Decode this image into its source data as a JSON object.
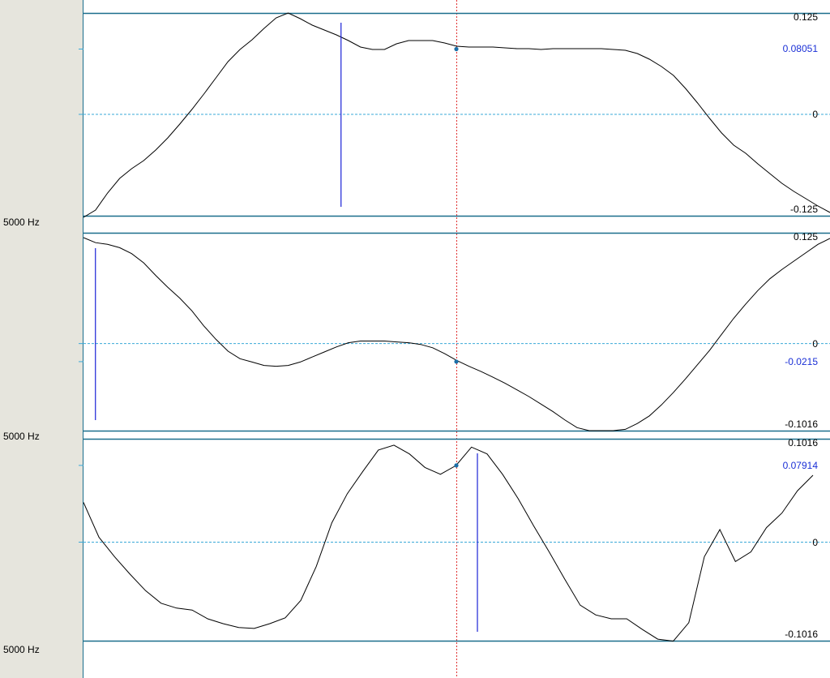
{
  "panels": [
    {
      "freq_label": "5000 Hz",
      "ylim": [
        -0.125,
        0.125
      ],
      "ticks": {
        "top": "0.125",
        "zero": "0",
        "bottom": "-0.125"
      },
      "cursor_value": 0.08051,
      "cursor_label": "0.08051",
      "marker_time": 0.345,
      "samples": [
        -0.14,
        -0.118,
        -0.097,
        -0.079,
        -0.067,
        -0.057,
        -0.044,
        -0.029,
        -0.012,
        0.006,
        0.025,
        0.045,
        0.065,
        0.08,
        0.092,
        0.106,
        0.119,
        0.125,
        0.118,
        0.11,
        0.104,
        0.098,
        0.091,
        0.083,
        0.08,
        0.08,
        0.087,
        0.091,
        0.091,
        0.091,
        0.088,
        0.084,
        0.083,
        0.083,
        0.083,
        0.082,
        0.081,
        0.081,
        0.08,
        0.081,
        0.081,
        0.081,
        0.081,
        0.081,
        0.08,
        0.079,
        0.075,
        0.068,
        0.059,
        0.048,
        0.032,
        0.014,
        -0.005,
        -0.023,
        -0.038,
        -0.048,
        -0.061,
        -0.073,
        -0.085,
        -0.095,
        -0.104,
        -0.113,
        -0.121
      ]
    },
    {
      "freq_label": "5000 Hz",
      "ylim": [
        -0.1016,
        0.125
      ],
      "ticks": {
        "top": "0.125",
        "zero": "0",
        "bottom": "-0.1016"
      },
      "cursor_value": -0.0215,
      "cursor_label": "-0.0215",
      "marker_time": 0.016,
      "samples": [
        0.126,
        0.12,
        0.118,
        0.114,
        0.107,
        0.096,
        0.081,
        0.067,
        0.054,
        0.039,
        0.021,
        0.005,
        -0.009,
        -0.018,
        -0.022,
        -0.026,
        -0.027,
        -0.026,
        -0.022,
        -0.016,
        -0.01,
        -0.004,
        0.001,
        0.003,
        0.003,
        0.003,
        0.002,
        0.001,
        -0.001,
        -0.005,
        -0.012,
        -0.02,
        -0.027,
        -0.033,
        -0.04,
        -0.047,
        -0.055,
        -0.063,
        -0.072,
        -0.081,
        -0.091,
        -0.1,
        -0.106,
        -0.108,
        -0.107,
        -0.102,
        -0.095,
        -0.086,
        -0.073,
        -0.058,
        -0.042,
        -0.025,
        -0.008,
        0.011,
        0.03,
        0.047,
        0.063,
        0.077,
        0.088,
        0.098,
        0.108,
        0.118,
        0.125
      ]
    },
    {
      "freq_label": "5000 Hz",
      "ylim": [
        -0.1016,
        0.1016
      ],
      "ticks": {
        "top": "0.1016",
        "zero": "0",
        "bottom": "-0.1016"
      },
      "cursor_value": 0.07914,
      "cursor_label": "0.07914",
      "marker_time": 0.54,
      "samples": [
        0.041,
        0.005,
        -0.015,
        -0.033,
        -0.05,
        -0.063,
        -0.068,
        -0.07,
        -0.079,
        -0.084,
        -0.088,
        -0.089,
        -0.084,
        -0.078,
        -0.06,
        -0.025,
        0.02,
        0.05,
        0.073,
        0.095,
        0.1,
        0.091,
        0.077,
        0.07,
        0.079,
        0.098,
        0.091,
        0.07,
        0.045,
        0.017,
        -0.01,
        -0.038,
        -0.065,
        -0.075,
        -0.079,
        -0.079,
        -0.09,
        -0.1,
        -0.102,
        -0.083,
        -0.015,
        0.013,
        -0.02,
        -0.01,
        0.015,
        0.03,
        0.053,
        0.069
      ]
    }
  ],
  "colors": {
    "waveform": "#000000",
    "zero_line": "#3aa9d8",
    "cursor_line": "#e03030",
    "cursor_dot": "#1c6fa8",
    "marker": "#1a22d6",
    "border": "#1a6e8c",
    "axis_strip": "#e6e5dd"
  }
}
